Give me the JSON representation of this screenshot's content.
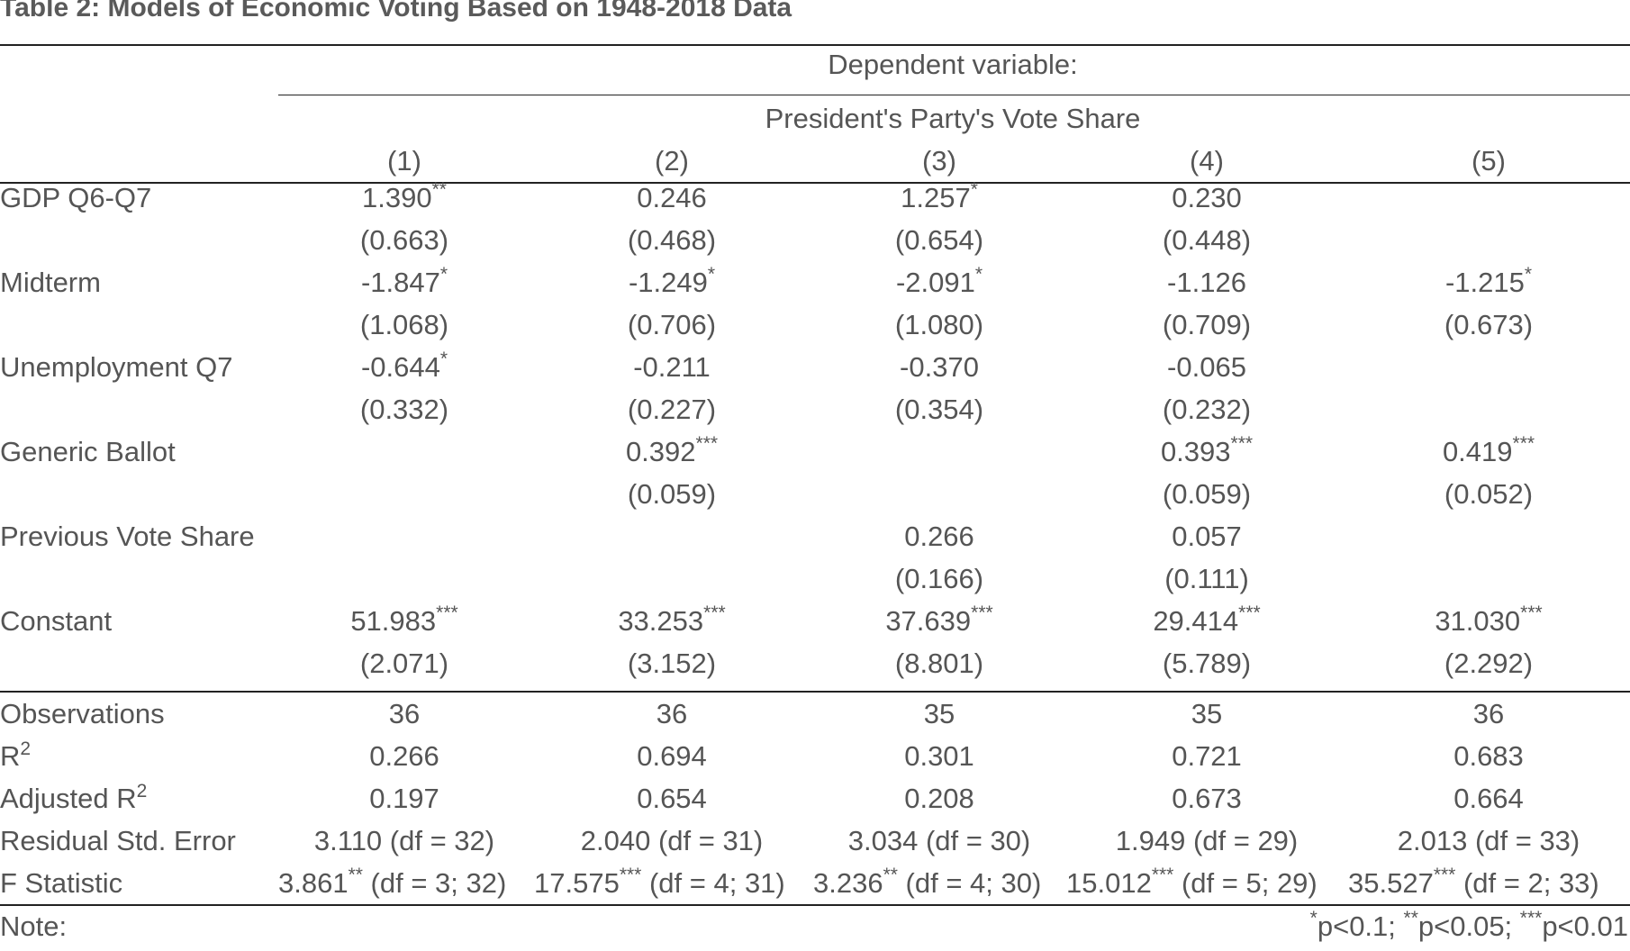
{
  "title": "Table 2: Models of Economic Voting Based on 1948-2018 Data",
  "header": {
    "dependent_label": "Dependent variable:",
    "dependent_var": "President's Party's Vote Share",
    "columns": [
      "(1)",
      "(2)",
      "(3)",
      "(4)",
      "(5)"
    ]
  },
  "rows": [
    {
      "label": "GDP Q6-Q7",
      "coef": [
        {
          "v": "1.390",
          "s": "**"
        },
        {
          "v": "0.246",
          "s": ""
        },
        {
          "v": "1.257",
          "s": "*"
        },
        {
          "v": "0.230",
          "s": ""
        },
        {
          "v": "",
          "s": ""
        }
      ],
      "se": [
        "(0.663)",
        "(0.468)",
        "(0.654)",
        "(0.448)",
        ""
      ]
    },
    {
      "label": "Midterm",
      "coef": [
        {
          "v": "-1.847",
          "s": "*"
        },
        {
          "v": "-1.249",
          "s": "*"
        },
        {
          "v": "-2.091",
          "s": "*"
        },
        {
          "v": "-1.126",
          "s": ""
        },
        {
          "v": "-1.215",
          "s": "*"
        }
      ],
      "se": [
        "(1.068)",
        "(0.706)",
        "(1.080)",
        "(0.709)",
        "(0.673)"
      ]
    },
    {
      "label": "Unemployment Q7",
      "coef": [
        {
          "v": "-0.644",
          "s": "*"
        },
        {
          "v": "-0.211",
          "s": ""
        },
        {
          "v": "-0.370",
          "s": ""
        },
        {
          "v": "-0.065",
          "s": ""
        },
        {
          "v": "",
          "s": ""
        }
      ],
      "se": [
        "(0.332)",
        "(0.227)",
        "(0.354)",
        "(0.232)",
        ""
      ]
    },
    {
      "label": "Generic Ballot",
      "coef": [
        {
          "v": "",
          "s": ""
        },
        {
          "v": "0.392",
          "s": "***"
        },
        {
          "v": "",
          "s": ""
        },
        {
          "v": "0.393",
          "s": "***"
        },
        {
          "v": "0.419",
          "s": "***"
        }
      ],
      "se": [
        "",
        "(0.059)",
        "",
        "(0.059)",
        "(0.052)"
      ]
    },
    {
      "label": "Previous Vote Share",
      "coef": [
        {
          "v": "",
          "s": ""
        },
        {
          "v": "",
          "s": ""
        },
        {
          "v": "0.266",
          "s": ""
        },
        {
          "v": "0.057",
          "s": ""
        },
        {
          "v": "",
          "s": ""
        }
      ],
      "se": [
        "",
        "",
        "(0.166)",
        "(0.111)",
        ""
      ]
    },
    {
      "label": "Constant",
      "coef": [
        {
          "v": "51.983",
          "s": "***"
        },
        {
          "v": "33.253",
          "s": "***"
        },
        {
          "v": "37.639",
          "s": "***"
        },
        {
          "v": "29.414",
          "s": "***"
        },
        {
          "v": "31.030",
          "s": "***"
        }
      ],
      "se": [
        "(2.071)",
        "(3.152)",
        "(8.801)",
        "(5.789)",
        "(2.292)"
      ]
    }
  ],
  "stats": [
    {
      "label": "Observations",
      "sup": "",
      "values": [
        "36",
        "36",
        "35",
        "35",
        "36"
      ]
    },
    {
      "label": "R",
      "sup": "2",
      "values": [
        "0.266",
        "0.694",
        "0.301",
        "0.721",
        "0.683"
      ]
    },
    {
      "label": "Adjusted R",
      "sup": "2",
      "values": [
        "0.197",
        "0.654",
        "0.208",
        "0.673",
        "0.664"
      ]
    },
    {
      "label": "Residual Std. Error",
      "sup": "",
      "values": [
        "3.110 (df = 32)",
        "2.040 (df = 31)",
        "3.034 (df = 30)",
        "1.949 (df = 29)",
        "2.013 (df = 33)"
      ]
    }
  ],
  "fstat": {
    "label": "F Statistic",
    "values": [
      {
        "v": "3.861",
        "s": "**",
        "df": " (df = 3; 32)"
      },
      {
        "v": "17.575",
        "s": "***",
        "df": " (df = 4; 31)"
      },
      {
        "v": "3.236",
        "s": "**",
        "df": " (df = 4; 30)"
      },
      {
        "v": "15.012",
        "s": "***",
        "df": " (df = 5; 29)"
      },
      {
        "v": "35.527",
        "s": "***",
        "df": " (df = 2; 33)"
      }
    ]
  },
  "note": {
    "label": "Note:",
    "parts": [
      {
        "s": "*",
        "t": "p<0.1; "
      },
      {
        "s": "**",
        "t": "p<0.05; "
      },
      {
        "s": "***",
        "t": "p<0.01"
      }
    ]
  }
}
